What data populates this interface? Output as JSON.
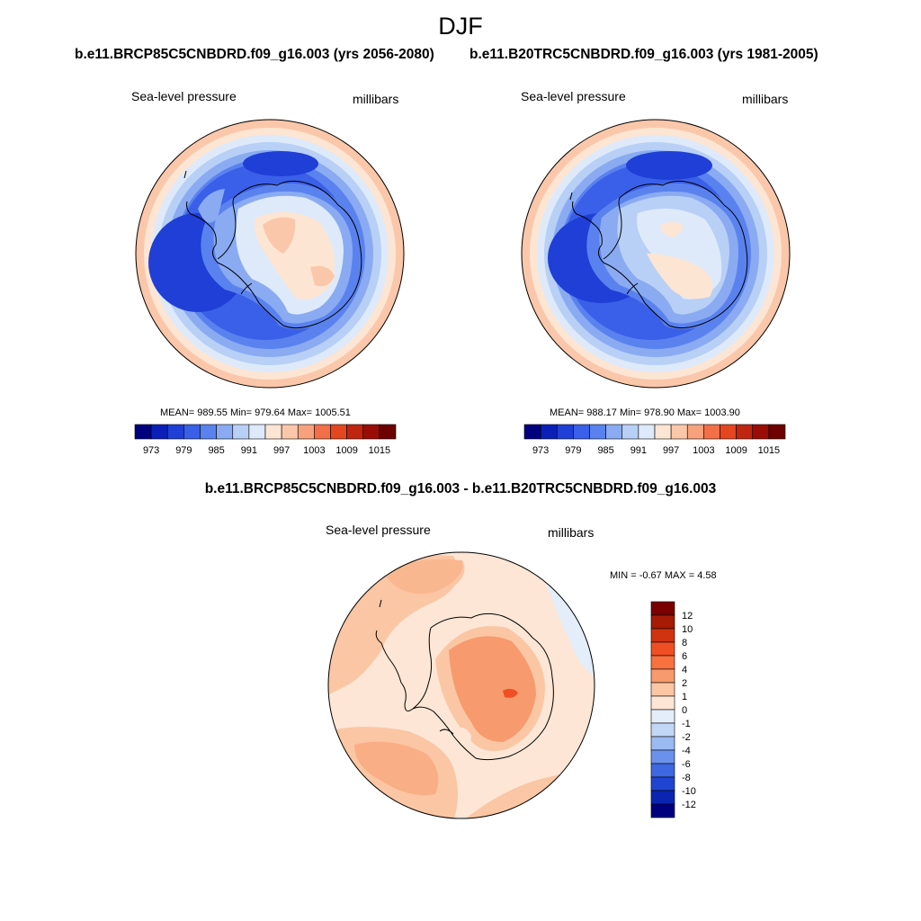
{
  "figure": {
    "season": "DJF",
    "panel_a": {
      "title": "b.e11.BRCP85C5CNBDRD.f09_g16.003 (yrs 2056-2080)",
      "variable": "Sea-level pressure",
      "units": "millibars",
      "stats": "MEAN= 989.55  Min= 979.64  Max= 1005.51"
    },
    "panel_b": {
      "title": "b.e11.B20TRC5CNBDRD.f09_g16.003 (yrs 1981-2005)",
      "variable": "Sea-level pressure",
      "units": "millibars",
      "stats": "MEAN= 988.17  Min= 978.90  Max= 1003.90"
    },
    "panel_diff": {
      "title": "b.e11.BRCP85C5CNBDRD.f09_g16.003 - b.e11.B20TRC5CNBDRD.f09_g16.003",
      "variable": "Sea-level pressure",
      "units": "millibars",
      "stats": "MIN =  -0.67 MAX =   4.58"
    }
  },
  "colorbar_abs": {
    "labels": [
      "973",
      "979",
      "985",
      "991",
      "997",
      "1003",
      "1009",
      "1015"
    ],
    "colors": [
      "#00007f",
      "#0a1fb8",
      "#1f3fd6",
      "#3a5fe8",
      "#5a82ef",
      "#8aabf2",
      "#b8d0f6",
      "#deeaf9",
      "#fde5d3",
      "#fbc7aa",
      "#f7a27c",
      "#f26f48",
      "#e4471f",
      "#c02510",
      "#9a0d06",
      "#6e0000"
    ]
  },
  "colorbar_diff": {
    "labels": [
      "12",
      "10",
      "8",
      "6",
      "4",
      "2",
      "1",
      "0",
      "-1",
      "-2",
      "-4",
      "-6",
      "-8",
      "-10",
      "-12"
    ],
    "colors": [
      "#7a0000",
      "#a61a06",
      "#cf3310",
      "#f04e23",
      "#f8713f",
      "#f79a6d",
      "#fbc6a4",
      "#fde6d5",
      "#e3eefa",
      "#c2d7f6",
      "#9bbaf2",
      "#6a92ec",
      "#3d68e2",
      "#1f45d2",
      "#0b25b2",
      "#00007f"
    ]
  }
}
